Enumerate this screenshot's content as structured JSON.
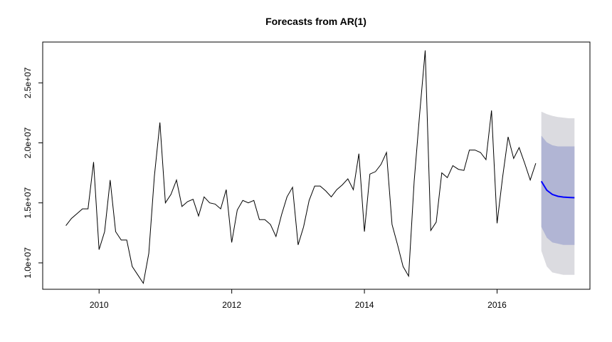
{
  "chart_data": {
    "type": "line",
    "title": "Forecasts from AR(1)",
    "xlabel": "",
    "ylabel": "",
    "xlim": [
      2009.15,
      2017.4
    ],
    "ylim": [
      7800000,
      28400000
    ],
    "x_ticks": [
      2010,
      2012,
      2014,
      2016
    ],
    "x_tick_labels": [
      "2010",
      "2012",
      "2014",
      "2016"
    ],
    "y_ticks": [
      10000000,
      15000000,
      20000000,
      25000000
    ],
    "y_tick_labels": [
      "1.0e+07",
      "1.5e+07",
      "2.0e+07",
      "2.5e+07"
    ],
    "grid": false,
    "legend": "none",
    "colors": {
      "observed": "#000000",
      "forecast": "#0000ff",
      "band80": "#b1b5d4",
      "band95": "#dbdbe0"
    },
    "observed": {
      "start": 2009.5,
      "step": 0.08333,
      "values": [
        13100000,
        13700000,
        14100000,
        14500000,
        14500000,
        18400000,
        11100000,
        12600000,
        16900000,
        12600000,
        11900000,
        11900000,
        9700000,
        9000000,
        8300000,
        10800000,
        17200000,
        21700000,
        15000000,
        15700000,
        16900000,
        14700000,
        15100000,
        15300000,
        13900000,
        15500000,
        15000000,
        14900000,
        14500000,
        16100000,
        11700000,
        14400000,
        15200000,
        15000000,
        15200000,
        13600000,
        13600000,
        13200000,
        12200000,
        14000000,
        15500000,
        16300000,
        11500000,
        13000000,
        15200000,
        16400000,
        16400000,
        16000000,
        15500000,
        16100000,
        16500000,
        17000000,
        16100000,
        19100000,
        12600000,
        17400000,
        17600000,
        18200000,
        19200000,
        13200000,
        11500000,
        9700000,
        8900000,
        16800000,
        22400000,
        27700000,
        12700000,
        13400000,
        17500000,
        17100000,
        18100000,
        17800000,
        17700000,
        19400000,
        19400000,
        19200000,
        18600000,
        22700000,
        13300000,
        17100000,
        20500000,
        18700000,
        19600000,
        18300000,
        16900000,
        18300000
      ]
    },
    "forecast": {
      "start": 2016.667,
      "step": 0.08333,
      "mean": [
        16800000,
        16050000,
        15700000,
        15550000,
        15480000,
        15450000,
        15430000
      ],
      "lo80": [
        13000000,
        12100000,
        11700000,
        11600000,
        11500000,
        11500000,
        11500000
      ],
      "hi80": [
        20600000,
        20050000,
        19800000,
        19700000,
        19700000,
        19700000,
        19700000
      ],
      "lo95": [
        11000000,
        9700000,
        9200000,
        9100000,
        9000000,
        9000000,
        9000000
      ],
      "hi95": [
        22600000,
        22400000,
        22250000,
        22150000,
        22100000,
        22050000,
        22050000
      ]
    }
  }
}
